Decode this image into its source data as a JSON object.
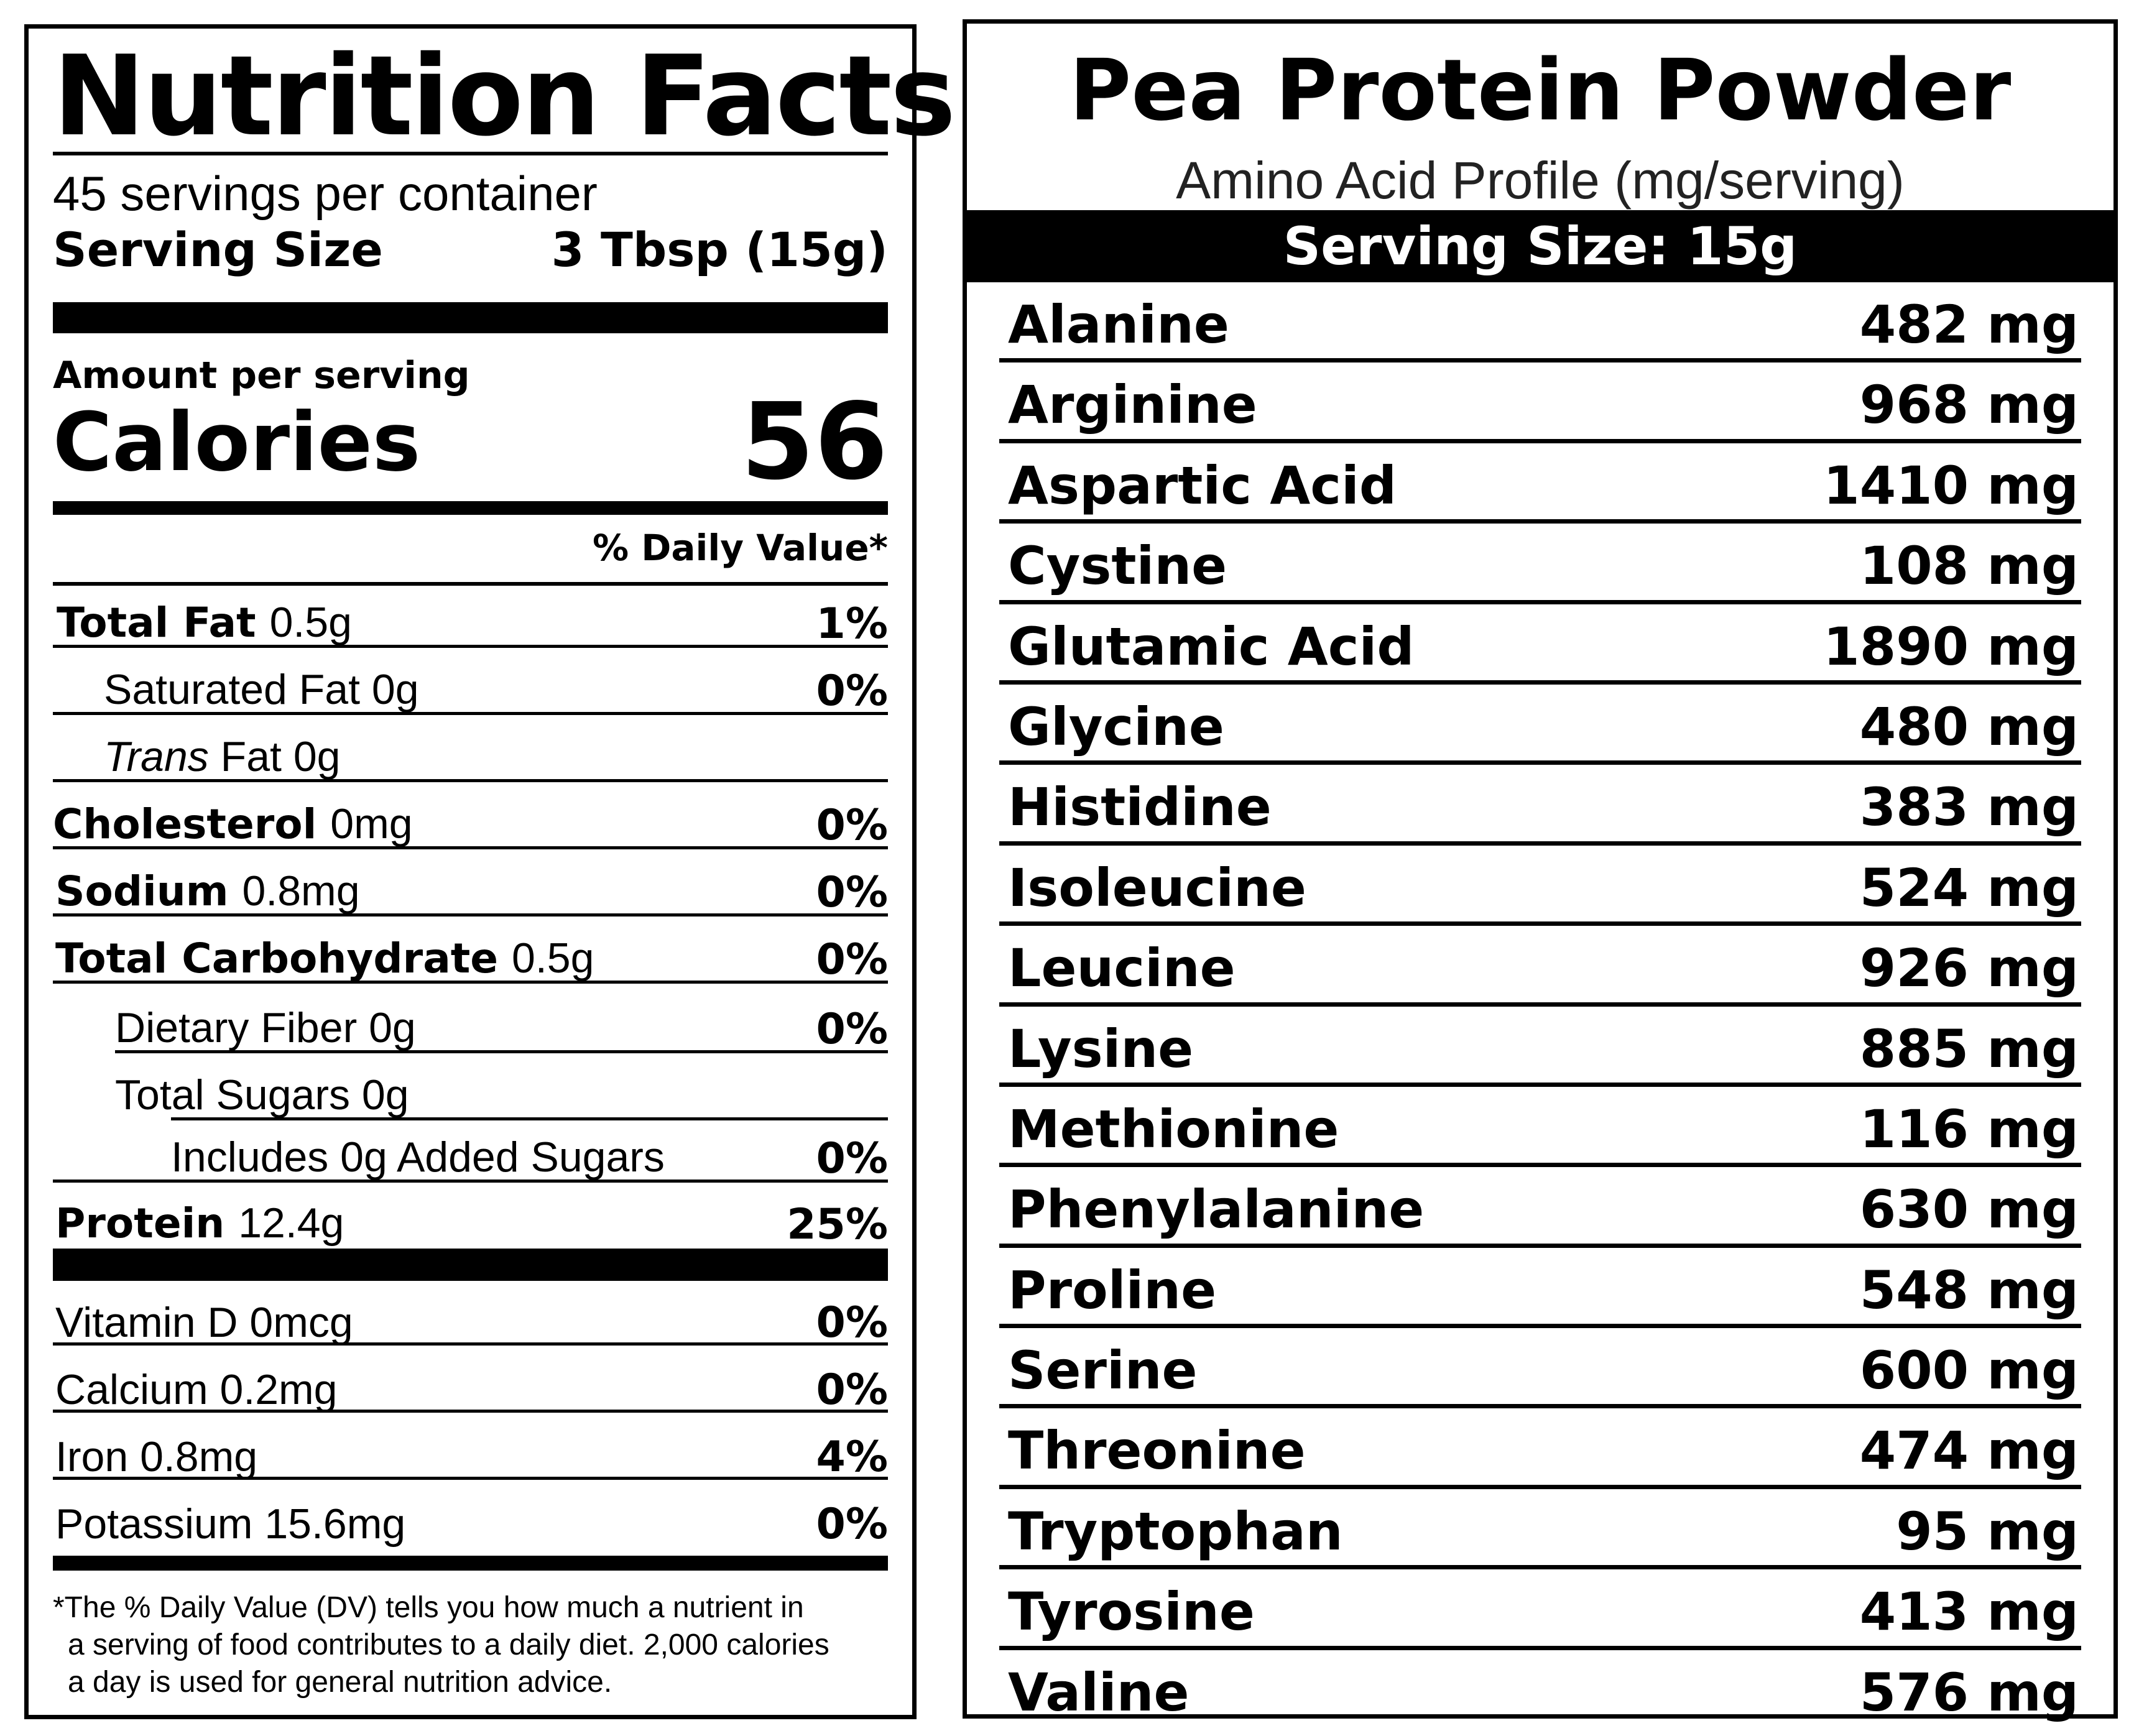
{
  "nutrition_facts": {
    "title": "Nutrition Facts",
    "servings_per_container": "45 servings per container",
    "serving_size_label": "Serving Size",
    "serving_size_value": "3 Tbsp (15g)",
    "amount_per_serving": "Amount per serving",
    "calories_label": "Calories",
    "calories_value": "56",
    "daily_value_header": "% Daily Value*",
    "nutrients": [
      {
        "label_bold": "Total Fat",
        "label": "0.5g",
        "dv": "1%"
      },
      {
        "label_bold": "",
        "label": "Saturated Fat  0g",
        "dv": "0%"
      },
      {
        "label_italic": "Trans",
        "label": " Fat  0g",
        "dv": ""
      },
      {
        "label_bold": "Cholesterol",
        "label": "0mg",
        "dv": "0%"
      },
      {
        "label_bold": "Sodium",
        "label": "0.8mg",
        "dv": "0%"
      },
      {
        "label_bold": "Total Carbohydrate",
        "label": "0.5g",
        "dv": "0%"
      },
      {
        "label_bold": "",
        "label": "Dietary Fiber  0g",
        "dv": "0%"
      },
      {
        "label_bold": "",
        "label": "Total Sugars  0g",
        "dv": ""
      },
      {
        "label_bold": "",
        "label": "Includes 0g Added Sugars",
        "dv": "0%"
      },
      {
        "label_bold": "Protein",
        "label": "12.4g",
        "dv": "25%"
      }
    ],
    "vitamins": [
      {
        "label": "Vitamin D   0mcg",
        "dv": "0%"
      },
      {
        "label": "Calcium   0.2mg",
        "dv": "0%"
      },
      {
        "label": "Iron   0.8mg",
        "dv": "4%"
      },
      {
        "label": "Potassium   15.6mg",
        "dv": "0%"
      }
    ],
    "footnote_line1": "*The % Daily Value (DV) tells you how much a nutrient in",
    "footnote_line2": "a serving of food contributes to a daily diet. 2,000 calories",
    "footnote_line3": "a day is used for general nutrition advice."
  },
  "amino_profile": {
    "title": "Pea Protein Powder",
    "subtitle": "Amino Acid Profile (mg/serving)",
    "serving_size": "Serving Size: 15g",
    "rows": [
      {
        "name": "Alanine",
        "amount": "482 mg"
      },
      {
        "name": "Arginine",
        "amount": "968 mg"
      },
      {
        "name": "Aspartic Acid",
        "amount": "1410 mg"
      },
      {
        "name": "Cystine",
        "amount": "108 mg"
      },
      {
        "name": "Glutamic Acid",
        "amount": "1890 mg"
      },
      {
        "name": "Glycine",
        "amount": "480 mg"
      },
      {
        "name": "Histidine",
        "amount": "383 mg"
      },
      {
        "name": "Isoleucine",
        "amount": "524 mg"
      },
      {
        "name": "Leucine",
        "amount": "926 mg"
      },
      {
        "name": "Lysine",
        "amount": "885 mg"
      },
      {
        "name": "Methionine",
        "amount": "116 mg"
      },
      {
        "name": "Phenylalanine",
        "amount": "630 mg"
      },
      {
        "name": "Proline",
        "amount": "548 mg"
      },
      {
        "name": "Serine",
        "amount": "600 mg"
      },
      {
        "name": "Threonine",
        "amount": "474 mg"
      },
      {
        "name": "Tryptophan",
        "amount": "95 mg"
      },
      {
        "name": "Tyrosine",
        "amount": "413 mg"
      },
      {
        "name": "Valine",
        "amount": "576 mg"
      }
    ]
  }
}
